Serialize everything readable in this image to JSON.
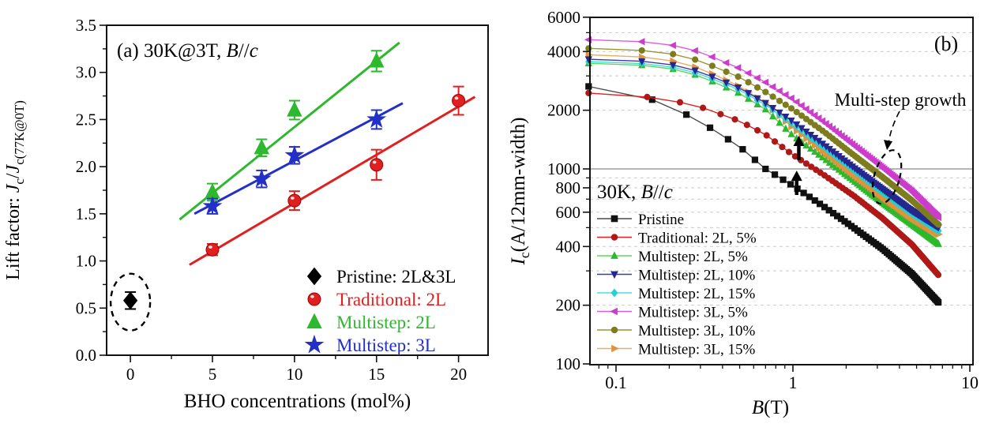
{
  "figure_background": "#ffffff",
  "chart_data": [
    {
      "id": "panel_a",
      "type": "scatter",
      "panel_label": "(a)",
      "title_parts": [
        {
          "t": "(a)  30K@3T, "
        },
        {
          "t": "B",
          "i": true
        },
        {
          "t": "//"
        },
        {
          "t": "c",
          "i": true
        }
      ],
      "xlabel": "BHO concentrations (mol%)",
      "ylabel_parts": [
        {
          "t": "Lift factor:  "
        },
        {
          "t": "J",
          "i": true
        },
        {
          "t": "c",
          "sub": true
        },
        {
          "t": "/"
        },
        {
          "t": "J",
          "i": true
        },
        {
          "t": "c(77K@0T)",
          "sub": true
        }
      ],
      "xlim": [
        -1.45,
        21.8
      ],
      "ylim": [
        0,
        3.5
      ],
      "xticks": [
        0,
        5,
        10,
        15,
        20
      ],
      "xminor": [
        2.5,
        7.5,
        12.5,
        17.5
      ],
      "yticks": [
        0.0,
        0.5,
        1.0,
        1.5,
        2.0,
        2.5,
        3.0,
        3.5
      ],
      "yminor_step": 0.25,
      "grid": false,
      "legend_position": "inside lower-right",
      "series": [
        {
          "name": "Pristine:  2L&3L",
          "marker": "diamond",
          "color": "#000000",
          "points": [
            {
              "x": 0,
              "y": 0.58,
              "e": 0.09
            }
          ],
          "circled": true
        },
        {
          "name": "Traditional: 2L",
          "marker": "sphere",
          "color": "#e02020",
          "points": [
            {
              "x": 5,
              "y": 1.12,
              "e": 0.06
            },
            {
              "x": 10,
              "y": 1.64,
              "e": 0.1
            },
            {
              "x": 15,
              "y": 2.02,
              "e": 0.16
            },
            {
              "x": 20,
              "y": 2.7,
              "e": 0.15
            }
          ],
          "fit": {
            "x1": 3.6,
            "x2": 21.0,
            "slope": 0.1024,
            "intercept": 0.59
          }
        },
        {
          "name": "Multistep: 2L",
          "marker": "triangle-up",
          "color": "#2db82d",
          "points": [
            {
              "x": 5,
              "y": 1.73,
              "e": 0.09
            },
            {
              "x": 8,
              "y": 2.2,
              "e": 0.09
            },
            {
              "x": 10,
              "y": 2.6,
              "e": 0.1
            },
            {
              "x": 15,
              "y": 3.12,
              "e": 0.11
            }
          ],
          "fit": {
            "x1": 3.0,
            "x2": 16.4,
            "slope": 0.14,
            "intercept": 1.02
          }
        },
        {
          "name": "Multistep: 3L",
          "marker": "star",
          "color": "#2230c8",
          "points": [
            {
              "x": 5,
              "y": 1.58,
              "e": 0.08
            },
            {
              "x": 8,
              "y": 1.87,
              "e": 0.09
            },
            {
              "x": 10,
              "y": 2.12,
              "e": 0.09
            },
            {
              "x": 15,
              "y": 2.5,
              "e": 0.1
            }
          ],
          "fit": {
            "x1": 3.9,
            "x2": 16.6,
            "slope": 0.0924,
            "intercept": 1.14
          }
        }
      ]
    },
    {
      "id": "panel_b",
      "type": "line",
      "panel_label": "(b)",
      "inner_label_parts": [
        {
          "t": "30K, "
        },
        {
          "t": "B",
          "i": true
        },
        {
          "t": "//"
        },
        {
          "t": "c",
          "i": true
        }
      ],
      "annotation_text": "Multi-step growth",
      "xlabel_parts": [
        {
          "t": "B",
          "i": true
        },
        {
          "t": "(T)"
        }
      ],
      "ylabel_parts": [
        {
          "t": "I",
          "i": true
        },
        {
          "t": "c",
          "sub": true
        },
        {
          "t": "(A/12mm-width)"
        }
      ],
      "xscale": "log",
      "yscale": "log",
      "xlim": [
        0.071,
        10.4
      ],
      "ylim": [
        100,
        6000
      ],
      "xtick_labels": [
        "0.1",
        "1",
        "10"
      ],
      "xtick_values": [
        0.1,
        1,
        10
      ],
      "xminor": [
        0.08,
        0.09,
        0.2,
        0.3,
        0.4,
        0.5,
        0.6,
        0.7,
        0.8,
        0.9,
        2,
        3,
        4,
        5,
        6,
        7,
        8,
        9
      ],
      "ytick_labeled": [
        100,
        200,
        400,
        600,
        800,
        1000,
        2000,
        4000,
        6000
      ],
      "ytick_minor": [
        300,
        500,
        700,
        900,
        3000,
        5000
      ],
      "grid_dashed": [
        200,
        300,
        400,
        500,
        600,
        700,
        800,
        900,
        2000,
        3000,
        4000,
        5000
      ],
      "grid_solid": [
        1000
      ],
      "marker_x_end": 6.7,
      "draw_order": [
        0,
        1,
        2,
        7,
        4,
        3,
        6,
        5
      ],
      "series": [
        {
          "name": "Pristine",
          "marker": "square",
          "color": "#111111",
          "line": "#4a4a4a",
          "step": 0.09,
          "anchors": [
            [
              0.07,
              2650
            ],
            [
              0.12,
              2500
            ],
            [
              0.2,
              2100
            ],
            [
              0.3,
              1750
            ],
            [
              0.5,
              1300
            ],
            [
              0.7,
              1000
            ],
            [
              1,
              820
            ],
            [
              1.5,
              640
            ],
            [
              2.2,
              500
            ],
            [
              3.2,
              390
            ],
            [
              4.7,
              290
            ],
            [
              6.7,
              205
            ]
          ]
        },
        {
          "name": "Traditional: 2L, 5%",
          "marker": "circle",
          "color": "#b01818",
          "line": "#e02020",
          "step": 0.08,
          "anchors": [
            [
              0.07,
              2450
            ],
            [
              0.12,
              2400
            ],
            [
              0.2,
              2260
            ],
            [
              0.3,
              2080
            ],
            [
              0.5,
              1760
            ],
            [
              0.7,
              1500
            ],
            [
              1,
              1180
            ],
            [
              1.5,
              930
            ],
            [
              2.2,
              730
            ],
            [
              3.2,
              560
            ],
            [
              4.7,
              410
            ],
            [
              6.7,
              283
            ]
          ]
        },
        {
          "name": "Multistep: 2L, 5%",
          "marker": "triangle-up",
          "color": "#2db82d",
          "line": "#5fd75f",
          "step": 0.07,
          "anchors": [
            [
              0.07,
              3480
            ],
            [
              0.12,
              3450
            ],
            [
              0.2,
              3290
            ],
            [
              0.3,
              2990
            ],
            [
              0.5,
              2440
            ],
            [
              0.7,
              2020
            ],
            [
              1,
              1480
            ],
            [
              1.5,
              1130
            ],
            [
              2.2,
              870
            ],
            [
              3.2,
              670
            ],
            [
              4.7,
              520
            ],
            [
              6.7,
              410
            ]
          ]
        },
        {
          "name": "Multistep: 2L, 10%",
          "marker": "triangle-down",
          "color": "#26268f",
          "line": "#3a3ab0",
          "step": 0.07,
          "anchors": [
            [
              0.07,
              3650
            ],
            [
              0.12,
              3620
            ],
            [
              0.2,
              3450
            ],
            [
              0.3,
              3150
            ],
            [
              0.5,
              2600
            ],
            [
              0.7,
              2180
            ],
            [
              1,
              1750
            ],
            [
              1.5,
              1330
            ],
            [
              2.2,
              1020
            ],
            [
              3.2,
              790
            ],
            [
              4.7,
              610
            ],
            [
              6.7,
              500
            ]
          ]
        },
        {
          "name": "Multistep: 2L, 15%",
          "marker": "diamond",
          "color": "#27cfcf",
          "line": "#49dede",
          "step": 0.07,
          "anchors": [
            [
              0.07,
              3550
            ],
            [
              0.12,
              3520
            ],
            [
              0.2,
              3360
            ],
            [
              0.3,
              3070
            ],
            [
              0.5,
              2540
            ],
            [
              0.7,
              2130
            ],
            [
              1,
              1700
            ],
            [
              1.5,
              1290
            ],
            [
              2.2,
              990
            ],
            [
              3.2,
              760
            ],
            [
              4.7,
              590
            ],
            [
              6.7,
              480
            ]
          ]
        },
        {
          "name": "Multistep: 3L, 5%",
          "marker": "triangle-left",
          "color": "#cc3dcc",
          "line": "#de5cde",
          "step": 0.07,
          "anchors": [
            [
              0.07,
              4600
            ],
            [
              0.12,
              4560
            ],
            [
              0.2,
              4350
            ],
            [
              0.3,
              3980
            ],
            [
              0.5,
              3280
            ],
            [
              0.7,
              2780
            ],
            [
              1,
              2280
            ],
            [
              1.5,
              1740
            ],
            [
              2.2,
              1330
            ],
            [
              3.2,
              1020
            ],
            [
              4.7,
              770
            ],
            [
              6.7,
              560
            ]
          ]
        },
        {
          "name": "Multistep: 3L, 10%",
          "marker": "circle",
          "color": "#7d7d1f",
          "line": "#97972e",
          "step": 0.07,
          "anchors": [
            [
              0.07,
              4150
            ],
            [
              0.12,
              4110
            ],
            [
              0.2,
              3920
            ],
            [
              0.3,
              3580
            ],
            [
              0.5,
              2950
            ],
            [
              0.7,
              2480
            ],
            [
              1,
              2020
            ],
            [
              1.5,
              1550
            ],
            [
              2.2,
              1180
            ],
            [
              3.2,
              910
            ],
            [
              4.7,
              690
            ],
            [
              6.7,
              515
            ]
          ]
        },
        {
          "name": "Multistep: 3L, 15%",
          "marker": "triangle-right",
          "color": "#e0923c",
          "line": "#ecad62",
          "step": 0.07,
          "anchors": [
            [
              0.07,
              3850
            ],
            [
              0.12,
              3810
            ],
            [
              0.2,
              3620
            ],
            [
              0.3,
              3280
            ],
            [
              0.5,
              2650
            ],
            [
              0.7,
              2180
            ],
            [
              1,
              1620
            ],
            [
              1.5,
              1210
            ],
            [
              2.2,
              930
            ],
            [
              3.2,
              720
            ],
            [
              4.7,
              560
            ],
            [
              6.7,
              460
            ]
          ]
        }
      ],
      "arrows_up": [
        {
          "x": 1.05,
          "y_from": 735,
          "y_to": 980
        },
        {
          "x": 1.08,
          "y_from": 1110,
          "y_to": 1480
        }
      ],
      "highlight_ellipse": {
        "x": 3.4,
        "y": 910
      }
    }
  ]
}
